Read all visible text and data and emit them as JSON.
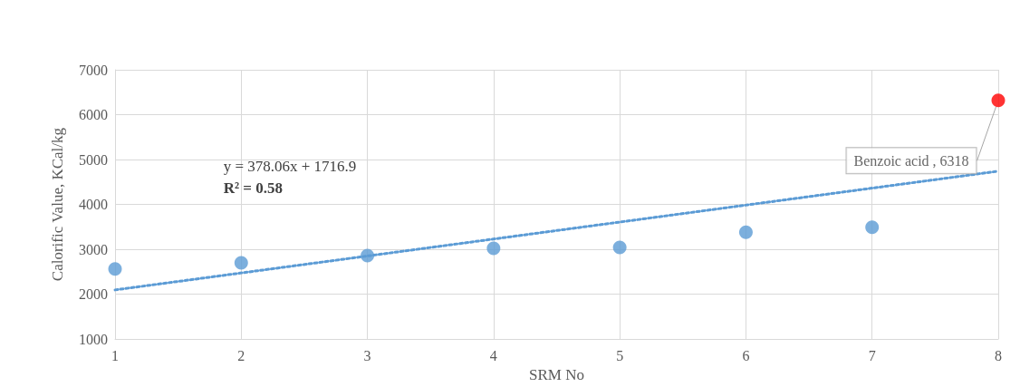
{
  "chart_data": {
    "type": "scatter",
    "xlabel": "SRM No",
    "ylabel": "Calorific Value, KCal/kg",
    "xlim": [
      1,
      8
    ],
    "xticks": [
      1,
      2,
      3,
      4,
      5,
      6,
      7,
      8
    ],
    "ylim": [
      1000,
      7000
    ],
    "yticks": [
      1000,
      2000,
      3000,
      4000,
      5000,
      6000,
      7000
    ],
    "grid": true,
    "marker": "circle",
    "series": [
      {
        "x": [
          1,
          2,
          3,
          4,
          5,
          6,
          7,
          8
        ],
        "values": [
          2560,
          2700,
          2860,
          3020,
          3040,
          3380,
          3490,
          6318
        ],
        "colors": [
          "#5b9bd5",
          "#5b9bd5",
          "#5b9bd5",
          "#5b9bd5",
          "#5b9bd5",
          "#5b9bd5",
          "#5b9bd5",
          "#ff0000"
        ]
      },
      {
        "type": "line",
        "x": [
          1,
          8
        ],
        "values": [
          2095,
          4741
        ],
        "color": "#5b9bd5",
        "line_style": "dotted",
        "marker": "none"
      }
    ],
    "annotations": [
      "y = 378.06x + 1716.9",
      "R² = 0.58",
      {
        "text": "Benzoic acid , 6318",
        "x": 8,
        "y": 6318
      }
    ]
  }
}
